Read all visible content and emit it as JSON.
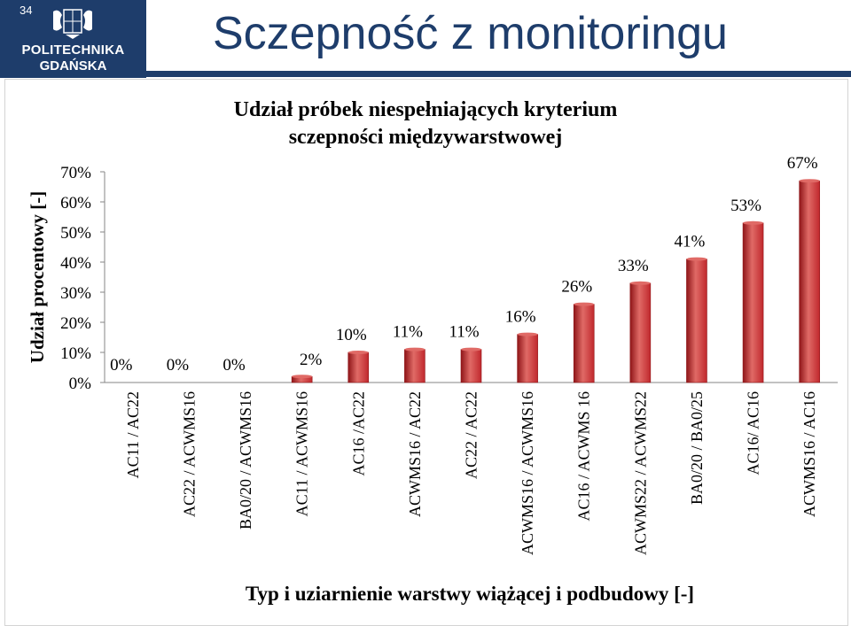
{
  "slide": {
    "page_number": "34",
    "title": "Sczepność z monitoringu",
    "logo": {
      "line1": "POLITECHNIKA",
      "line2": "GDAŃSKA",
      "crest_letters": "P G"
    }
  },
  "colors": {
    "bar": "#c0282d",
    "bar_dark": "#8f1518",
    "bar_light": "#e06a66",
    "navy": "#1e3d6b"
  },
  "chart_data": {
    "type": "bar",
    "title": "Udział próbek niespełniających kryterium sczepności międzywarstwowej",
    "title_lines": [
      "Udział próbek niespełniających kryterium",
      "sczepności międzywarstwowej"
    ],
    "xlabel": "Typ i uziarnienie warstwy wiążącej i podbudowy [-]",
    "ylabel": "Udział procentowy [-]",
    "ylim": [
      0,
      70
    ],
    "yticks": [
      "0%",
      "10%",
      "20%",
      "30%",
      "40%",
      "50%",
      "60%",
      "70%"
    ],
    "grid": false,
    "categories": [
      "AC11 / AC22",
      "AC22 / ACWMS16",
      "BA0/20 / ACWMS16",
      "AC11 / ACWMS16",
      "AC16 /AC22",
      "ACWMS16 / AC22",
      "AC22 / AC22",
      "ACWMS16 / ACWMS16",
      "AC16 / ACWMS 16",
      "ACWMS22 / ACWMS22",
      "BA0/20 / BA0/25",
      "AC16/ AC16",
      "ACWMS16 / AC16"
    ],
    "values": [
      0,
      0,
      0,
      2,
      10,
      11,
      11,
      16,
      26,
      33,
      41,
      53,
      67
    ],
    "data_labels": [
      "0%",
      "0%",
      "0%",
      "2%",
      "10%",
      "11%",
      "11%",
      "16%",
      "26%",
      "33%",
      "41%",
      "53%",
      "67%"
    ]
  }
}
